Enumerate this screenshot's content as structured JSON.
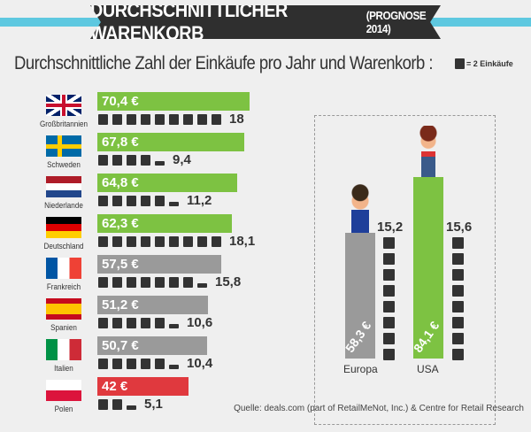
{
  "title": "DURCHSCHNITTLICHER WARENKORB",
  "title_suffix": "(PROGNOSE 2014)",
  "subtitle": "Durchschnittliche Zahl der Einkäufe pro Jahr und Warenkorb :",
  "legend": "= 2 Einkäufe",
  "source": "Quelle: deals.com (part of RetailMeNot, Inc.) & Centre for Retail Research",
  "colors": {
    "green": "#7dc242",
    "gray": "#9a9a9a",
    "red": "#e0393e",
    "dark": "#333333",
    "stripe": "#5ec8e0"
  },
  "chart_data": [
    {
      "type": "bar",
      "orientation": "horizontal",
      "unit": "€",
      "categories": [
        "Großbritannien",
        "Schweden",
        "Niederlande",
        "Deutschland",
        "Frankreich",
        "Spanien",
        "Italien",
        "Polen"
      ],
      "values": [
        70.4,
        67.8,
        64.8,
        62.3,
        57.5,
        51.2,
        50.7,
        42
      ],
      "value_labels": [
        "70,4 €",
        "67,8 €",
        "64,8 €",
        "62,3 €",
        "57,5 €",
        "51,2 €",
        "50,7 €",
        "42 €"
      ],
      "bar_colors": [
        "green",
        "green",
        "green",
        "green",
        "gray",
        "gray",
        "gray",
        "red"
      ],
      "purchases_per_year": [
        18,
        9.4,
        11.2,
        18.1,
        15.8,
        10.6,
        10.4,
        5.1
      ],
      "purchase_labels": [
        "18",
        "9,4",
        "11,2",
        "18,1",
        "15,8",
        "10,6",
        "10,4",
        "5,1"
      ],
      "flags": [
        "uk",
        "se",
        "nl",
        "de",
        "fr",
        "es",
        "it",
        "pl"
      ]
    },
    {
      "type": "bar",
      "orientation": "vertical",
      "unit": "€",
      "categories": [
        "Europa",
        "USA"
      ],
      "values": [
        58.3,
        84.1
      ],
      "value_labels": [
        "58,3 €",
        "84,1 €"
      ],
      "bar_colors": [
        "gray",
        "green"
      ],
      "purchases_per_year": [
        15.2,
        15.6
      ],
      "purchase_labels": [
        "15,2",
        "15,6"
      ]
    }
  ]
}
